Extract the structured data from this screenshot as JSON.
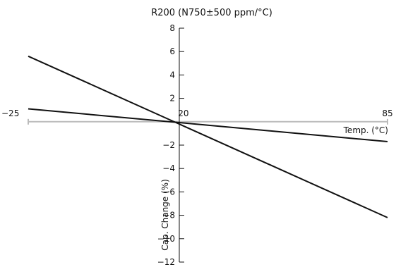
{
  "chart_data": {
    "type": "line",
    "title": "R200 (N750±500 ppm/°C)",
    "xlabel": "Temp. (°C)",
    "ylabel": "Cap. Change (%)",
    "x_ticks": [
      "−25",
      "20",
      "85"
    ],
    "x_tick_values": [
      -25,
      20,
      85
    ],
    "y_ticks": [
      "8",
      "6",
      "4",
      "2",
      "−2",
      "−4",
      "−6",
      "−8",
      "−10",
      "−12"
    ],
    "y_tick_values": [
      8,
      6,
      4,
      2,
      -2,
      -4,
      -6,
      -8,
      -10,
      -12
    ],
    "xlim": [
      -25,
      85
    ],
    "ylim": [
      -12,
      8
    ],
    "grid": false,
    "legend": "none",
    "series": [
      {
        "x": [
          -25,
          85
        ],
        "y": [
          5.6,
          -8.2
        ]
      },
      {
        "x": [
          -25,
          85
        ],
        "y": [
          1.1,
          -1.7
        ]
      }
    ],
    "colors": {
      "line": "#111111",
      "x_axis": "#bbbbbb",
      "y_axis": "#111111"
    }
  }
}
